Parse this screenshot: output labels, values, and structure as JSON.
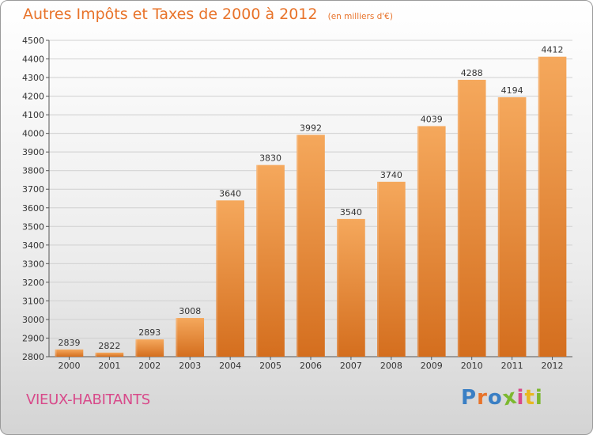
{
  "header": {
    "title": "Autres Impôts et Taxes de 2000 à 2012",
    "unit_note": "(en milliers d'€)"
  },
  "commune": "VIEUX-HABITANTS",
  "logo": {
    "text": "Proxiti",
    "letters": [
      "P",
      "r",
      "o",
      "x",
      "i",
      "t",
      "i"
    ],
    "colors": [
      "#3a7fc4",
      "#e8732a",
      "#3a7fc4",
      "#7cb82f",
      "#d84a8a",
      "#e8b820",
      "#7cb82f"
    ]
  },
  "colors": {
    "title": "#e8732a",
    "bar_light": "#f5a85c",
    "bar_dark": "#d46e1e",
    "commune": "#d84a8a",
    "grid": "#d0d0d0"
  },
  "chart_data": {
    "type": "bar",
    "title": "Autres Impôts et Taxes de 2000 à 2012",
    "subtitle": "(en milliers d'€)",
    "categories": [
      "2000",
      "2001",
      "2002",
      "2003",
      "2004",
      "2005",
      "2006",
      "2007",
      "2008",
      "2009",
      "2010",
      "2011",
      "2012"
    ],
    "values": [
      2839,
      2822,
      2893,
      3008,
      3640,
      3830,
      3992,
      3540,
      3740,
      4039,
      4288,
      4194,
      4412
    ],
    "data_labels": [
      "2839",
      "2822",
      "2893",
      "3008",
      "3640",
      "3830",
      "3992",
      "3540",
      "3740",
      "4039",
      "4288",
      "4194",
      "4412"
    ],
    "ylim": [
      2800,
      4500
    ],
    "yticks": [
      2800,
      2900,
      3000,
      3100,
      3200,
      3300,
      3400,
      3500,
      3600,
      3700,
      3800,
      3900,
      4000,
      4100,
      4200,
      4300,
      4400,
      4500
    ],
    "xlabel": "",
    "ylabel": "",
    "grid": true,
    "legend": "none"
  }
}
